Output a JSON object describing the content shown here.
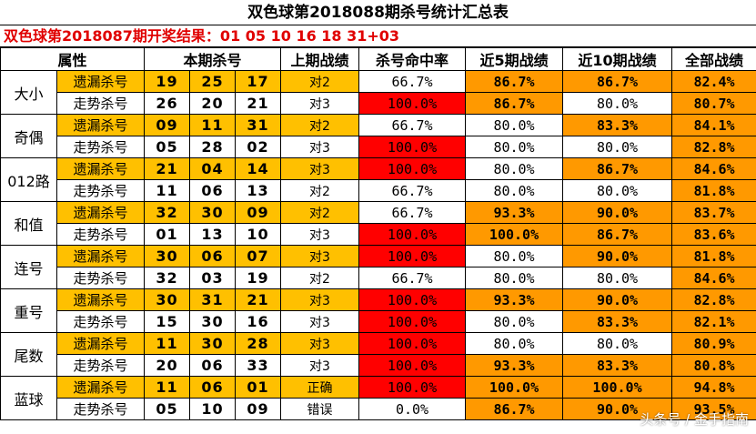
{
  "title": "双色球第2018088期杀号统计汇总表",
  "result_line": "双色球第2018087期开奖结果：01  05  10  16  18  31+03",
  "headers": [
    "属性",
    "本期杀号",
    "上期战绩",
    "杀号命中率",
    "近5期战绩",
    "近10期战绩",
    "全部战绩"
  ],
  "groups": [
    {
      "category": "大小",
      "rows": [
        {
          "method": "遗漏杀号",
          "nums": [
            "19",
            "25",
            "17"
          ],
          "last": "对2",
          "rate": "66.7%",
          "rate_hi": false,
          "n5": "86.7%",
          "n5_hi": true,
          "n10": "86.7%",
          "n10_hi": true,
          "all": "82.4%",
          "all_hi": true
        },
        {
          "method": "走势杀号",
          "nums": [
            "26",
            "20",
            "21"
          ],
          "last": "对3",
          "rate": "100.0%",
          "rate_hi": true,
          "n5": "86.7%",
          "n5_hi": true,
          "n10": "80.0%",
          "n10_hi": false,
          "all": "80.7%",
          "all_hi": true
        }
      ]
    },
    {
      "category": "奇偶",
      "rows": [
        {
          "method": "遗漏杀号",
          "nums": [
            "09",
            "11",
            "31"
          ],
          "last": "对2",
          "rate": "66.7%",
          "rate_hi": false,
          "n5": "80.0%",
          "n5_hi": false,
          "n10": "83.3%",
          "n10_hi": true,
          "all": "84.1%",
          "all_hi": true
        },
        {
          "method": "走势杀号",
          "nums": [
            "05",
            "28",
            "02"
          ],
          "last": "对3",
          "rate": "100.0%",
          "rate_hi": true,
          "n5": "80.0%",
          "n5_hi": false,
          "n10": "80.0%",
          "n10_hi": false,
          "all": "82.8%",
          "all_hi": true
        }
      ]
    },
    {
      "category": "012路",
      "rows": [
        {
          "method": "遗漏杀号",
          "nums": [
            "21",
            "04",
            "14"
          ],
          "last": "对3",
          "rate": "100.0%",
          "rate_hi": true,
          "n5": "80.0%",
          "n5_hi": false,
          "n10": "86.7%",
          "n10_hi": true,
          "all": "84.6%",
          "all_hi": true
        },
        {
          "method": "走势杀号",
          "nums": [
            "11",
            "06",
            "13"
          ],
          "last": "对2",
          "rate": "66.7%",
          "rate_hi": false,
          "n5": "80.0%",
          "n5_hi": false,
          "n10": "80.0%",
          "n10_hi": false,
          "all": "81.8%",
          "all_hi": true
        }
      ]
    },
    {
      "category": "和值",
      "rows": [
        {
          "method": "遗漏杀号",
          "nums": [
            "32",
            "30",
            "09"
          ],
          "last": "对2",
          "rate": "66.7%",
          "rate_hi": false,
          "n5": "93.3%",
          "n5_hi": true,
          "n10": "90.0%",
          "n10_hi": true,
          "all": "83.7%",
          "all_hi": true
        },
        {
          "method": "走势杀号",
          "nums": [
            "01",
            "13",
            "10"
          ],
          "last": "对3",
          "rate": "100.0%",
          "rate_hi": true,
          "n5": "100.0%",
          "n5_hi": true,
          "n10": "86.7%",
          "n10_hi": true,
          "all": "83.6%",
          "all_hi": true
        }
      ]
    },
    {
      "category": "连号",
      "rows": [
        {
          "method": "遗漏杀号",
          "nums": [
            "30",
            "06",
            "07"
          ],
          "last": "对3",
          "rate": "100.0%",
          "rate_hi": true,
          "n5": "80.0%",
          "n5_hi": false,
          "n10": "90.0%",
          "n10_hi": true,
          "all": "81.8%",
          "all_hi": true
        },
        {
          "method": "走势杀号",
          "nums": [
            "32",
            "03",
            "19"
          ],
          "last": "对2",
          "rate": "66.7%",
          "rate_hi": false,
          "n5": "80.0%",
          "n5_hi": false,
          "n10": "80.0%",
          "n10_hi": false,
          "all": "84.6%",
          "all_hi": true
        }
      ]
    },
    {
      "category": "重号",
      "rows": [
        {
          "method": "遗漏杀号",
          "nums": [
            "30",
            "31",
            "21"
          ],
          "last": "对3",
          "rate": "100.0%",
          "rate_hi": true,
          "n5": "93.3%",
          "n5_hi": true,
          "n10": "90.0%",
          "n10_hi": true,
          "all": "82.8%",
          "all_hi": true
        },
        {
          "method": "走势杀号",
          "nums": [
            "15",
            "30",
            "16"
          ],
          "last": "对3",
          "rate": "100.0%",
          "rate_hi": true,
          "n5": "80.0%",
          "n5_hi": false,
          "n10": "83.3%",
          "n10_hi": true,
          "all": "82.1%",
          "all_hi": true
        }
      ]
    },
    {
      "category": "尾数",
      "rows": [
        {
          "method": "遗漏杀号",
          "nums": [
            "11",
            "30",
            "28"
          ],
          "last": "对3",
          "rate": "100.0%",
          "rate_hi": true,
          "n5": "80.0%",
          "n5_hi": false,
          "n10": "80.0%",
          "n10_hi": false,
          "all": "80.9%",
          "all_hi": true
        },
        {
          "method": "走势杀号",
          "nums": [
            "20",
            "06",
            "33"
          ],
          "last": "对3",
          "rate": "100.0%",
          "rate_hi": true,
          "n5": "93.3%",
          "n5_hi": true,
          "n10": "83.3%",
          "n10_hi": true,
          "all": "80.8%",
          "all_hi": true
        }
      ]
    },
    {
      "category": "蓝球",
      "rows": [
        {
          "method": "遗漏杀号",
          "nums": [
            "11",
            "06",
            "01"
          ],
          "last": "正确",
          "rate": "100.0%",
          "rate_hi": true,
          "n5": "100.0%",
          "n5_hi": true,
          "n10": "100.0%",
          "n10_hi": true,
          "all": "94.8%",
          "all_hi": true
        },
        {
          "method": "走势杀号",
          "nums": [
            "05",
            "10",
            "09"
          ],
          "last": "错误",
          "rate": "0.0%",
          "rate_hi": false,
          "n5": "86.7%",
          "n5_hi": true,
          "n10": "90.0%",
          "n10_hi": true,
          "all": "93.5%",
          "all_hi": true
        }
      ]
    }
  ],
  "watermark": "头条号 / 金手指南",
  "colors": {
    "yellow": "#ffc000",
    "red": "#ff0000",
    "orange": "#ff9900",
    "result_text": "#e00000"
  }
}
